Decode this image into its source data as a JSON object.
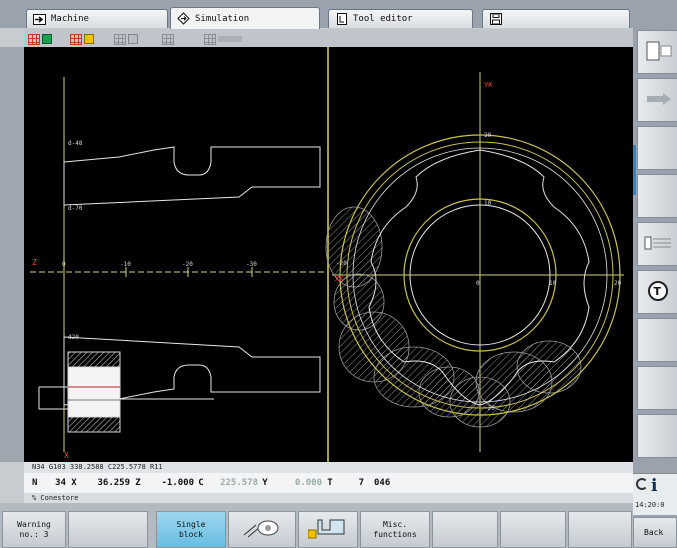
{
  "tabs": [
    {
      "label": "Machine",
      "icon": "arrow-right-icon"
    },
    {
      "label": "Simulation",
      "icon": "diamond-arrows-icon"
    },
    {
      "label": "Tool editor",
      "icon": "tool-file-icon"
    },
    {
      "label": "",
      "icon": "floppy-icon"
    }
  ],
  "graphics": {
    "turn_labels": {
      "d48": "d-48",
      "d70": "d-70",
      "d20": "d20",
      "z_axis": "Z",
      "x_axis": "X",
      "tick0": "0",
      "tick_neg10": "-10",
      "tick_neg20": "-20",
      "tick_neg30": "-30"
    },
    "face_labels": {
      "yk": "YK",
      "top20": "20",
      "top10": "10",
      "center0": "0",
      "right10": "10",
      "right20": "20",
      "bottom20": "-20",
      "xk": "XK",
      "left_mark": "-20"
    },
    "colors": {
      "contour": "#e6e6e6",
      "axis": "#d8d27a",
      "blank": "#c9c24a",
      "hatch": "#9a9a9a",
      "text": "#d8d8d8",
      "divider": "#e0d45a"
    }
  },
  "status": {
    "line1": "N34   G103 338.2588 C225.5778 R11",
    "line3": "% Conestore"
  },
  "position": {
    "n_label": "N",
    "n_value": "34",
    "x_label": "X",
    "x_value": "36.259",
    "z_label": "Z",
    "z_value": "-1.000",
    "c_label": "C",
    "c_value": "225.578",
    "y_label": "Y",
    "y_value": "0.000",
    "t_label": "T",
    "t_value": "7",
    "t_extra": "046"
  },
  "softkeys": {
    "warning_line1": "Warning",
    "warning_line2": "no.: 3",
    "single_line1": "Single",
    "single_line2": "block",
    "misc_line1": "Misc.",
    "misc_line2": "functions",
    "back": "Back"
  },
  "right_panel": {
    "time": "14:20:0"
  }
}
